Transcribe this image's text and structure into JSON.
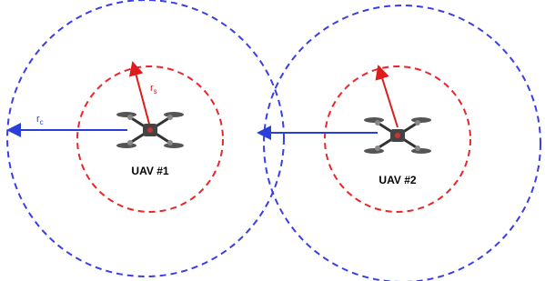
{
  "diagram": {
    "labels": {
      "uav1": "UAV #1",
      "uav2": "UAV #2",
      "communication_radius": {
        "symbol": "r",
        "subscript": "c"
      },
      "sensing_radius": {
        "symbol": "r",
        "subscript": "s"
      }
    }
  }
}
